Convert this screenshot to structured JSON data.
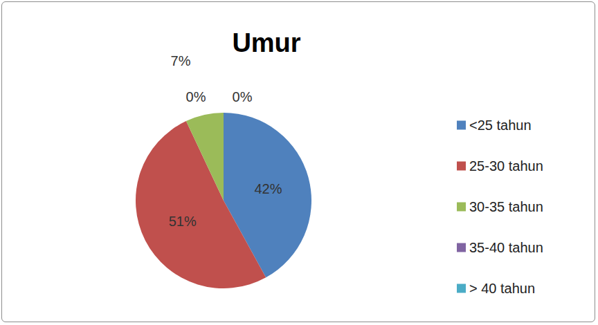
{
  "chart_data": {
    "type": "pie",
    "title": "Umur",
    "categories": [
      "<25 tahun",
      "25-30 tahun",
      "30-35 tahun",
      "35-40 tahun",
      "> 40 tahun"
    ],
    "values": [
      42,
      51,
      7,
      0,
      0
    ],
    "value_labels": [
      "42%",
      "51%",
      "7%",
      "0%",
      "0%"
    ],
    "colors": [
      "#4f81bd",
      "#c0504d",
      "#9bbb59",
      "#8064a2",
      "#4bacc6"
    ],
    "data_labels": true,
    "legend": "right"
  }
}
